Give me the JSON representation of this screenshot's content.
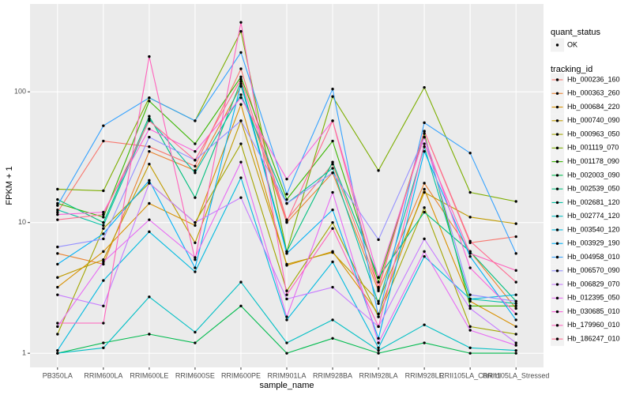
{
  "chart_data": {
    "type": "line",
    "x_label": "sample_name",
    "y_label": "FPKM + 1",
    "categories": [
      "PB350LA",
      "RRIM600LA",
      "RRIM600LE",
      "RRIM600SE",
      "RRIM600PE",
      "RRIM901LA",
      "RRIM928BA",
      "RRIM928LA",
      "RRIM928LE",
      "RRII105LA_Control",
      "RRII105LA_Stressed"
    ],
    "ylim": [
      0.78,
      470
    ],
    "yticks": [
      1,
      10,
      100
    ],
    "log_scale": true,
    "grid": true,
    "point_color": "#000000",
    "shape_legend_title": "quant_status",
    "shape_legend_labels": [
      "OK"
    ],
    "color_legend_title": "tracking_id",
    "series": [
      {
        "name": "Hb_000236_160",
        "color": "#F8766D",
        "values": [
          12,
          42,
          38,
          27,
          150,
          10.5,
          28,
          3.2,
          50,
          7,
          7.8
        ]
      },
      {
        "name": "Hb_000363_260",
        "color": "#EA8331",
        "values": [
          5.8,
          4.8,
          35,
          25,
          110,
          10,
          24,
          3.0,
          20,
          6,
          2.2
        ]
      },
      {
        "name": "Hb_000684_220",
        "color": "#D89000",
        "values": [
          3.2,
          6,
          14,
          9.5,
          80,
          4.7,
          6,
          2.0,
          18,
          2.5,
          1.6
        ]
      },
      {
        "name": "Hb_000740_090",
        "color": "#C09B00",
        "values": [
          3.8,
          5.2,
          28,
          7,
          60,
          4.8,
          5.9,
          2.5,
          17,
          11,
          9.8
        ]
      },
      {
        "name": "Hb_000963_050",
        "color": "#A3A500",
        "values": [
          1.4,
          9,
          20,
          10,
          40,
          3,
          10,
          1.9,
          13,
          1.6,
          1.4
        ]
      },
      {
        "name": "Hb_001119_070",
        "color": "#7CAE00",
        "values": [
          18,
          17.5,
          90,
          60,
          290,
          6,
          92,
          25,
          108,
          17,
          14.5
        ]
      },
      {
        "name": "Hb_001178_090",
        "color": "#39B600",
        "values": [
          14,
          11,
          85,
          40,
          130,
          15,
          42,
          3.5,
          48,
          2.3,
          2.3
        ]
      },
      {
        "name": "Hb_002003_090",
        "color": "#00BB4E",
        "values": [
          1.0,
          1.2,
          1.4,
          1.2,
          2.3,
          1.0,
          1.3,
          1.0,
          1.2,
          1.0,
          1.0
        ]
      },
      {
        "name": "Hb_002539_050",
        "color": "#00BF7D",
        "values": [
          15,
          10,
          65,
          15.5,
          120,
          6,
          29,
          3.8,
          12,
          6,
          2.5
        ]
      },
      {
        "name": "Hb_002681_120",
        "color": "#00C1A3",
        "values": [
          12.5,
          9.5,
          62,
          24,
          95,
          14,
          26,
          2.4,
          38,
          2.6,
          2.4
        ]
      },
      {
        "name": "Hb_002774_120",
        "color": "#00BFC4",
        "values": [
          1.0,
          1.1,
          2.7,
          1.45,
          3.5,
          1.2,
          1.8,
          1.05,
          1.65,
          1.1,
          1.05
        ]
      },
      {
        "name": "Hb_003540_120",
        "color": "#00BAE0",
        "values": [
          1.05,
          3.6,
          8.5,
          4.2,
          22,
          1.8,
          5,
          1.1,
          5.5,
          2.6,
          2.8
        ]
      },
      {
        "name": "Hb_003929_190",
        "color": "#00B0F6",
        "values": [
          4.8,
          8.2,
          21,
          4.5,
          115,
          5.8,
          12.5,
          1.3,
          35,
          5.5,
          1.8
        ]
      },
      {
        "name": "Hb_004958_010",
        "color": "#35A2FF",
        "values": [
          13.5,
          55,
          90,
          60,
          200,
          16.5,
          105,
          1.9,
          58,
          34,
          5.8
        ]
      },
      {
        "name": "Hb_006570_090",
        "color": "#9590FF",
        "values": [
          6.5,
          7.5,
          45,
          30,
          60,
          14,
          24,
          7.4,
          45,
          2.8,
          2.5
        ]
      },
      {
        "name": "Hb_006829_070",
        "color": "#C77CFF",
        "values": [
          2.8,
          2.3,
          20,
          10,
          15.5,
          2.6,
          3.2,
          1.6,
          7.5,
          2.2,
          1.2
        ]
      },
      {
        "name": "Hb_012395_050",
        "color": "#E76BF3",
        "values": [
          1.6,
          5,
          10.5,
          5.4,
          29,
          1.9,
          17,
          1.2,
          6,
          1.5,
          1.15
        ]
      },
      {
        "name": "Hb_030685_010",
        "color": "#FA62DB",
        "values": [
          11.5,
          12,
          52,
          35,
          90,
          21.5,
          60,
          3.8,
          45,
          4.5,
          2.0
        ]
      },
      {
        "name": "Hb_179960_010",
        "color": "#FF62BC",
        "values": [
          1.7,
          1.7,
          186,
          5.2,
          340,
          2.8,
          9,
          1.6,
          40,
          5.8,
          4.3
        ]
      },
      {
        "name": "Hb_186247_010",
        "color": "#FF6C91",
        "values": [
          10.5,
          11.5,
          60,
          30,
          125,
          10.2,
          60,
          3.1,
          50,
          7.2,
          3.5
        ]
      }
    ]
  }
}
